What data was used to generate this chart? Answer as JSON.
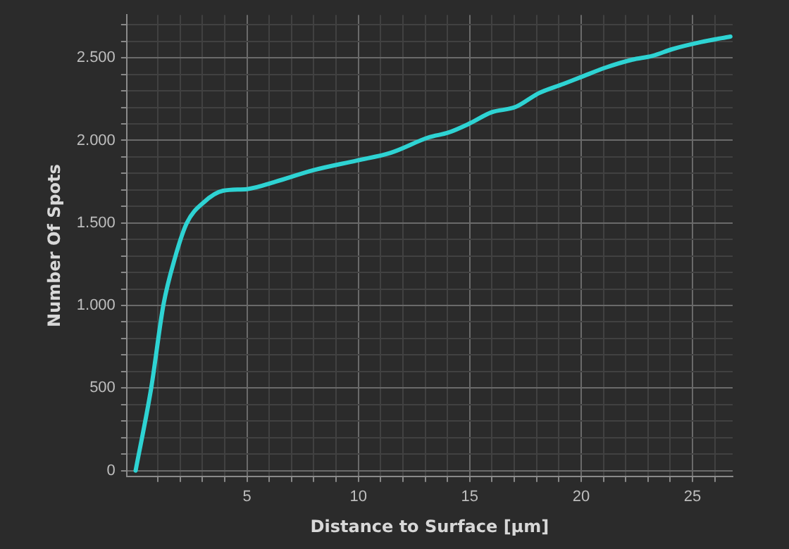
{
  "chart_data": {
    "type": "line",
    "xlabel": "Distance to Surface [µm]",
    "ylabel": "Number Of Spots",
    "x": [
      0,
      0.7,
      1.25,
      1.77,
      2.3,
      3.06,
      3.92,
      5.0,
      6.28,
      8.0,
      9.93,
      11.45,
      13.17,
      14.03,
      15.0,
      15.97,
      17.05,
      18.1,
      19.2,
      20.0,
      21.1,
      22.3,
      23.2,
      24.1,
      25.4,
      26.7
    ],
    "series": [
      {
        "color": "#2ed3d3",
        "values": [
          0,
          500,
          1005,
          1290,
          1500,
          1625,
          1695,
          1705,
          1750,
          1820,
          1878,
          1925,
          2019,
          2047,
          2103,
          2170,
          2202,
          2286,
          2342,
          2384,
          2441,
          2489,
          2512,
          2553,
          2596,
          2629
        ]
      }
    ],
    "xlim": [
      -0.4,
      26.8
    ],
    "xticks": [
      {
        "value": 1,
        "label": null
      },
      {
        "value": 2,
        "label": null
      },
      {
        "value": 3,
        "label": null
      },
      {
        "value": 4,
        "label": null
      },
      5,
      {
        "value": 6,
        "label": null
      },
      {
        "value": 7,
        "label": null
      },
      {
        "value": 8,
        "label": null
      },
      {
        "value": 9,
        "label": null
      },
      10,
      {
        "value": 11,
        "label": null
      },
      {
        "value": 12,
        "label": null
      },
      {
        "value": 13,
        "label": null
      },
      {
        "value": 14,
        "label": null
      },
      15,
      {
        "value": 16,
        "label": null
      },
      {
        "value": 17,
        "label": null
      },
      {
        "value": 18,
        "label": null
      },
      {
        "value": 19,
        "label": null
      },
      20,
      {
        "value": 21,
        "label": null
      },
      {
        "value": 22,
        "label": null
      },
      {
        "value": 23,
        "label": null
      },
      {
        "value": 24,
        "label": null
      },
      25,
      {
        "value": 26,
        "label": null
      }
    ],
    "ylim": [
      -35,
      2760
    ],
    "yticks": [
      0,
      {
        "value": 100,
        "label": null
      },
      {
        "value": 200,
        "label": null
      },
      {
        "value": 300,
        "label": null
      },
      {
        "value": 400,
        "label": null
      },
      500,
      {
        "value": 600,
        "label": null
      },
      {
        "value": 700,
        "label": null
      },
      {
        "value": 800,
        "label": null
      },
      {
        "value": 900,
        "label": null
      },
      {
        "value": 1000,
        "label": "1.000"
      },
      {
        "value": 1100,
        "label": null
      },
      {
        "value": 1200,
        "label": null
      },
      {
        "value": 1300,
        "label": null
      },
      {
        "value": 1400,
        "label": null
      },
      {
        "value": 1500,
        "label": "1.500"
      },
      {
        "value": 1600,
        "label": null
      },
      {
        "value": 1700,
        "label": null
      },
      {
        "value": 1800,
        "label": null
      },
      {
        "value": 1900,
        "label": null
      },
      {
        "value": 2000,
        "label": "2.000"
      },
      {
        "value": 2100,
        "label": null
      },
      {
        "value": 2200,
        "label": null
      },
      {
        "value": 2300,
        "label": null
      },
      {
        "value": 2400,
        "label": null
      },
      {
        "value": 2500,
        "label": "2.500"
      },
      {
        "value": 2600,
        "label": null
      },
      {
        "value": 2700,
        "label": null
      }
    ],
    "grid": true,
    "marker": "none",
    "line_style": "solid"
  }
}
